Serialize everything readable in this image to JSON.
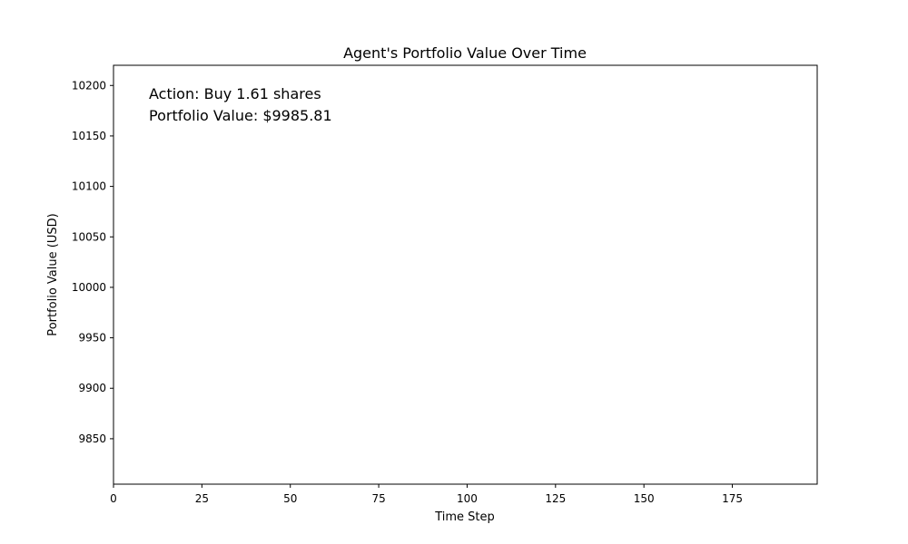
{
  "chart_data": {
    "type": "line",
    "title": "Agent's Portfolio Value Over Time",
    "xlabel": "Time Step",
    "ylabel": "Portfolio Value (USD)",
    "xlim": [
      0,
      199
    ],
    "ylim": [
      9805,
      10220
    ],
    "x_ticks": [
      0,
      25,
      50,
      75,
      100,
      125,
      150,
      175
    ],
    "y_ticks": [
      9850,
      9900,
      9950,
      10000,
      10050,
      10100,
      10150,
      10200
    ],
    "x_tick_labels": [
      "0",
      "25",
      "50",
      "75",
      "100",
      "125",
      "150",
      "175"
    ],
    "y_tick_labels": [
      "9850",
      "9900",
      "9950",
      "10000",
      "10050",
      "10100",
      "10150",
      "10200"
    ],
    "series": [
      {
        "x": [],
        "values": []
      }
    ],
    "annotations": {
      "action": "Action: Buy 1.61 shares",
      "portfolio_value": "Portfolio Value: $9985.81"
    },
    "grid": false
  }
}
